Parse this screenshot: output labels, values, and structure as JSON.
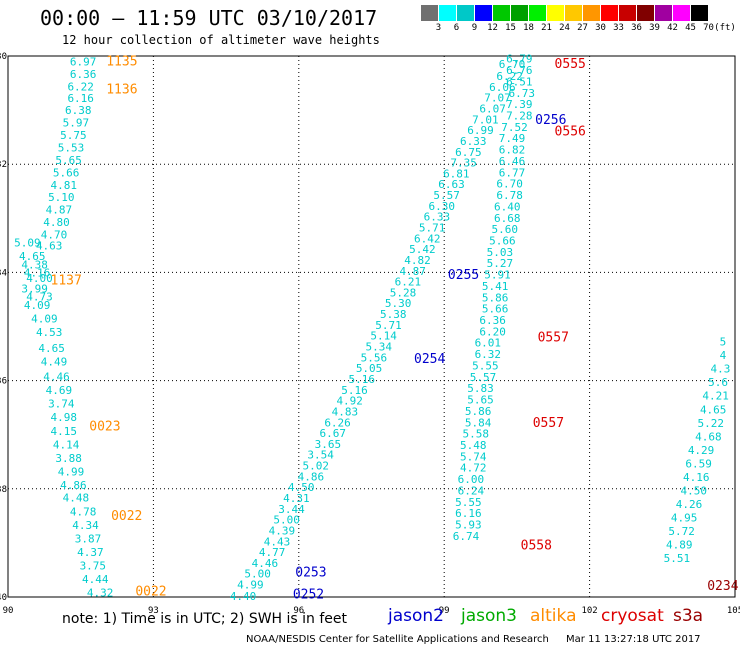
{
  "header": {
    "title": "00:00 – 11:59 UTC 03/10/2017",
    "subtitle": "12 hour collection of altimeter wave heights"
  },
  "colorbar": {
    "labels": [
      "3",
      "6",
      "9",
      "12",
      "15",
      "18",
      "21",
      "24",
      "27",
      "30",
      "33",
      "36",
      "39",
      "42",
      "45",
      "70",
      "(ft)"
    ],
    "colors": [
      "#707070",
      "#00ffff",
      "#00c8c8",
      "#0000ff",
      "#00c800",
      "#00a000",
      "#00f000",
      "#ffff00",
      "#ffc800",
      "#ff9600",
      "#ff0000",
      "#c80000",
      "#800000",
      "#a000a0",
      "#ff00ff",
      "#000000"
    ]
  },
  "footer": {
    "note": "note: 1) Time is in UTC; 2) SWH is in feet",
    "satellites": [
      {
        "name": "jason2",
        "color": "#0000cc"
      },
      {
        "name": "jason3",
        "color": "#00aa00"
      },
      {
        "name": "altika",
        "color": "#ff8c00"
      },
      {
        "name": "cryosat",
        "color": "#dd0000"
      },
      {
        "name": "s3a",
        "color": "#990000"
      }
    ],
    "credit": "NOAA/NESDIS Center for Satellite Applications and Research",
    "timestamp": "Mar 11 13:27:18 UTC 2017"
  },
  "chart_data": {
    "type": "scatter",
    "xlim": [
      90,
      105
    ],
    "ylim": [
      -40,
      -30
    ],
    "x_ticks": [
      "90",
      "93",
      "96",
      "99",
      "102",
      "105"
    ],
    "y_ticks": [
      "-30",
      "-32",
      "-34",
      "-36",
      "-38",
      "-40"
    ],
    "grid": true,
    "tracks": [
      {
        "color": "#00cccc",
        "points": [
          [
            91.55,
            -30.1,
            "6.97"
          ],
          [
            91.55,
            -30.33,
            "6.36"
          ],
          [
            91.5,
            -30.56,
            "6.22"
          ],
          [
            91.5,
            -30.78,
            "6.16"
          ],
          [
            91.45,
            -31.0,
            "6.38"
          ],
          [
            91.4,
            -31.23,
            "5.97"
          ],
          [
            91.35,
            -31.46,
            "5.75"
          ],
          [
            91.3,
            -31.69,
            "5.53"
          ],
          [
            91.25,
            -31.92,
            "5.65"
          ],
          [
            91.2,
            -32.15,
            "5.66"
          ],
          [
            91.15,
            -32.38,
            "4.81"
          ],
          [
            91.1,
            -32.61,
            "5.10"
          ],
          [
            91.05,
            -32.84,
            "4.87"
          ],
          [
            91.0,
            -33.07,
            "4.80"
          ],
          [
            90.95,
            -33.3,
            "4.70"
          ],
          [
            90.85,
            -33.5,
            "4.63"
          ],
          [
            90.4,
            -33.45,
            "5.09"
          ],
          [
            90.5,
            -33.7,
            "4.65"
          ],
          [
            90.55,
            -33.85,
            "4.38"
          ],
          [
            90.6,
            -34.0,
            "4.16"
          ],
          [
            90.65,
            -34.1,
            "4.00"
          ],
          [
            90.55,
            -34.3,
            "3.99"
          ],
          [
            90.65,
            -34.45,
            "4.73"
          ],
          [
            90.6,
            -34.6,
            "4.09"
          ],
          [
            90.75,
            -34.85,
            "4.09"
          ],
          [
            90.85,
            -35.1,
            "4.53"
          ],
          [
            90.9,
            -35.4,
            "4.65"
          ],
          [
            90.95,
            -35.65,
            "4.49"
          ],
          [
            91.0,
            -35.92,
            "4.46"
          ],
          [
            91.05,
            -36.17,
            "4.69"
          ],
          [
            91.1,
            -36.42,
            "3.74"
          ],
          [
            91.15,
            -36.67,
            "4.98"
          ],
          [
            91.15,
            -36.93,
            "4.15"
          ],
          [
            91.2,
            -37.18,
            "4.14"
          ],
          [
            91.25,
            -37.43,
            "3.88"
          ],
          [
            91.3,
            -37.68,
            "4.99"
          ],
          [
            91.35,
            -37.93,
            "4.86"
          ],
          [
            91.4,
            -38.16,
            "4.48"
          ],
          [
            91.55,
            -38.42,
            "4.78"
          ],
          [
            91.6,
            -38.67,
            "4.34"
          ],
          [
            91.65,
            -38.92,
            "3.87"
          ],
          [
            91.7,
            -39.17,
            "4.37"
          ],
          [
            91.75,
            -39.42,
            "3.75"
          ],
          [
            91.8,
            -39.67,
            "4.44"
          ],
          [
            91.9,
            -39.92,
            "4.32"
          ],
          [
            94.85,
            -39.98,
            "4.40"
          ],
          [
            95.0,
            -39.77,
            "4.99"
          ],
          [
            95.15,
            -39.57,
            "5.00"
          ],
          [
            95.3,
            -39.37,
            "4.46"
          ],
          [
            95.45,
            -39.17,
            "4.77"
          ],
          [
            95.55,
            -38.97,
            "4.43"
          ],
          [
            95.65,
            -38.77,
            "4.39"
          ],
          [
            95.75,
            -38.57,
            "5.00"
          ],
          [
            95.85,
            -38.37,
            "3.44"
          ],
          [
            95.95,
            -38.17,
            "4.31"
          ],
          [
            96.05,
            -37.97,
            "4.50"
          ],
          [
            96.25,
            -37.77,
            "4.86"
          ],
          [
            96.35,
            -37.57,
            "5.02"
          ],
          [
            96.45,
            -37.37,
            "3.54"
          ],
          [
            96.6,
            -37.17,
            "3.65"
          ],
          [
            96.7,
            -36.97,
            "6.67"
          ],
          [
            96.8,
            -36.77,
            "6.26"
          ],
          [
            96.95,
            -36.57,
            "4.83"
          ],
          [
            97.05,
            -36.37,
            "4.92"
          ],
          [
            97.15,
            -36.17,
            "5.16"
          ],
          [
            97.3,
            -35.97,
            "5.16"
          ],
          [
            97.45,
            -35.77,
            "5.05"
          ],
          [
            97.55,
            -35.57,
            "5.56"
          ],
          [
            97.65,
            -35.37,
            "5.34"
          ],
          [
            97.75,
            -35.17,
            "5.14"
          ],
          [
            97.85,
            -34.97,
            "5.71"
          ],
          [
            97.95,
            -34.77,
            "5.38"
          ],
          [
            98.05,
            -34.57,
            "5.30"
          ],
          [
            98.15,
            -34.37,
            "5.28"
          ],
          [
            98.25,
            -34.17,
            "6.21"
          ],
          [
            98.35,
            -33.97,
            "4.87"
          ],
          [
            98.45,
            -33.77,
            "4.82"
          ],
          [
            98.55,
            -33.57,
            "5.42"
          ],
          [
            98.65,
            -33.37,
            "6.42"
          ],
          [
            98.75,
            -33.17,
            "5.71"
          ],
          [
            98.85,
            -32.97,
            "6.33"
          ],
          [
            98.95,
            -32.77,
            "6.30"
          ],
          [
            99.05,
            -32.57,
            "5.57"
          ],
          [
            99.15,
            -32.37,
            "6.63"
          ],
          [
            99.25,
            -32.17,
            "6.81"
          ],
          [
            99.4,
            -31.97,
            "7.35"
          ],
          [
            99.5,
            -31.77,
            "6.75"
          ],
          [
            99.6,
            -31.57,
            "6.33"
          ],
          [
            99.75,
            -31.37,
            "6.99"
          ],
          [
            99.85,
            -31.17,
            "7.01"
          ],
          [
            100.0,
            -30.97,
            "6.07"
          ],
          [
            100.1,
            -30.77,
            "7.07"
          ],
          [
            100.2,
            -30.57,
            "6.06"
          ],
          [
            100.35,
            -30.37,
            "6.22"
          ],
          [
            100.4,
            -30.15,
            "6.70"
          ],
          [
            100.55,
            -30.05,
            "6.79"
          ],
          [
            100.55,
            -30.26,
            "6.76"
          ],
          [
            100.55,
            -30.47,
            "6.51"
          ],
          [
            100.6,
            -30.68,
            "6.73"
          ],
          [
            100.55,
            -30.89,
            "7.39"
          ],
          [
            100.55,
            -31.1,
            "7.28"
          ],
          [
            100.45,
            -31.31,
            "7.52"
          ],
          [
            100.4,
            -31.52,
            "7.49"
          ],
          [
            100.4,
            -31.73,
            "6.82"
          ],
          [
            100.4,
            -31.94,
            "6.46"
          ],
          [
            100.4,
            -32.15,
            "6.77"
          ],
          [
            100.35,
            -32.36,
            "6.70"
          ],
          [
            100.35,
            -32.57,
            "6.78"
          ],
          [
            100.3,
            -32.78,
            "6.40"
          ],
          [
            100.3,
            -32.99,
            "6.68"
          ],
          [
            100.25,
            -33.2,
            "5.60"
          ],
          [
            100.2,
            -33.41,
            "5.66"
          ],
          [
            100.15,
            -33.62,
            "5.03"
          ],
          [
            100.15,
            -33.83,
            "5.27"
          ],
          [
            100.1,
            -34.04,
            "5.91"
          ],
          [
            100.05,
            -34.25,
            "5.41"
          ],
          [
            100.05,
            -34.46,
            "5.86"
          ],
          [
            100.05,
            -34.67,
            "5.66"
          ],
          [
            100.0,
            -34.88,
            "6.36"
          ],
          [
            100.0,
            -35.09,
            "6.20"
          ],
          [
            99.9,
            -35.3,
            "6.01"
          ],
          [
            99.9,
            -35.51,
            "6.32"
          ],
          [
            99.85,
            -35.72,
            "5.55"
          ],
          [
            99.8,
            -35.93,
            "5.57"
          ],
          [
            99.75,
            -36.14,
            "5.83"
          ],
          [
            99.75,
            -36.35,
            "5.65"
          ],
          [
            99.7,
            -36.56,
            "5.86"
          ],
          [
            99.7,
            -36.77,
            "5.84"
          ],
          [
            99.65,
            -36.98,
            "5.58"
          ],
          [
            99.6,
            -37.19,
            "5.48"
          ],
          [
            99.6,
            -37.4,
            "5.74"
          ],
          [
            99.6,
            -37.61,
            "4.72"
          ],
          [
            99.55,
            -37.82,
            "6.00"
          ],
          [
            99.55,
            -38.03,
            "6.24"
          ],
          [
            99.5,
            -38.24,
            "5.55"
          ],
          [
            99.5,
            -38.45,
            "6.16"
          ],
          [
            99.5,
            -38.66,
            "5.93"
          ],
          [
            99.45,
            -38.87,
            "6.74"
          ],
          [
            104.75,
            -35.28,
            "5"
          ],
          [
            104.75,
            -35.53,
            "4"
          ],
          [
            104.7,
            -35.78,
            "4.3"
          ],
          [
            104.65,
            -36.03,
            "5.6"
          ],
          [
            104.6,
            -36.28,
            "4.21"
          ],
          [
            104.55,
            -36.53,
            "4.65"
          ],
          [
            104.5,
            -36.78,
            "5.22"
          ],
          [
            104.45,
            -37.03,
            "4.68"
          ],
          [
            104.3,
            -37.28,
            "4.29"
          ],
          [
            104.25,
            -37.53,
            "6.59"
          ],
          [
            104.2,
            -37.78,
            "4.16"
          ],
          [
            104.15,
            -38.03,
            "4.50"
          ],
          [
            104.05,
            -38.28,
            "4.26"
          ],
          [
            103.95,
            -38.53,
            "4.95"
          ],
          [
            103.9,
            -38.78,
            "5.72"
          ],
          [
            103.85,
            -39.03,
            "4.89"
          ],
          [
            103.8,
            -39.28,
            "5.51"
          ]
        ]
      },
      {
        "color": "#ff8c00",
        "points": [
          [
            92.35,
            -30.1,
            "1135"
          ],
          [
            92.35,
            -30.62,
            "1136"
          ],
          [
            91.2,
            -34.15,
            "1137"
          ],
          [
            92.0,
            -36.85,
            "0023"
          ],
          [
            92.45,
            -38.5,
            "0022"
          ],
          [
            92.95,
            -39.9,
            "0022"
          ]
        ]
      },
      {
        "color": "#0000cc",
        "points": [
          [
            96.25,
            -39.55,
            "0253"
          ],
          [
            96.2,
            -39.95,
            "0252"
          ],
          [
            98.7,
            -35.6,
            "0254"
          ],
          [
            99.4,
            -34.05,
            "0255"
          ],
          [
            101.2,
            -31.18,
            "0256"
          ]
        ]
      },
      {
        "color": "#dd0000",
        "points": [
          [
            101.6,
            -30.15,
            "0555"
          ],
          [
            101.6,
            -31.4,
            "0556"
          ],
          [
            101.25,
            -35.2,
            "0557"
          ],
          [
            101.15,
            -36.78,
            "0557"
          ],
          [
            100.9,
            -39.05,
            "0558"
          ]
        ]
      },
      {
        "color": "#990000",
        "points": [
          [
            104.75,
            -39.8,
            "0234"
          ]
        ]
      }
    ]
  }
}
